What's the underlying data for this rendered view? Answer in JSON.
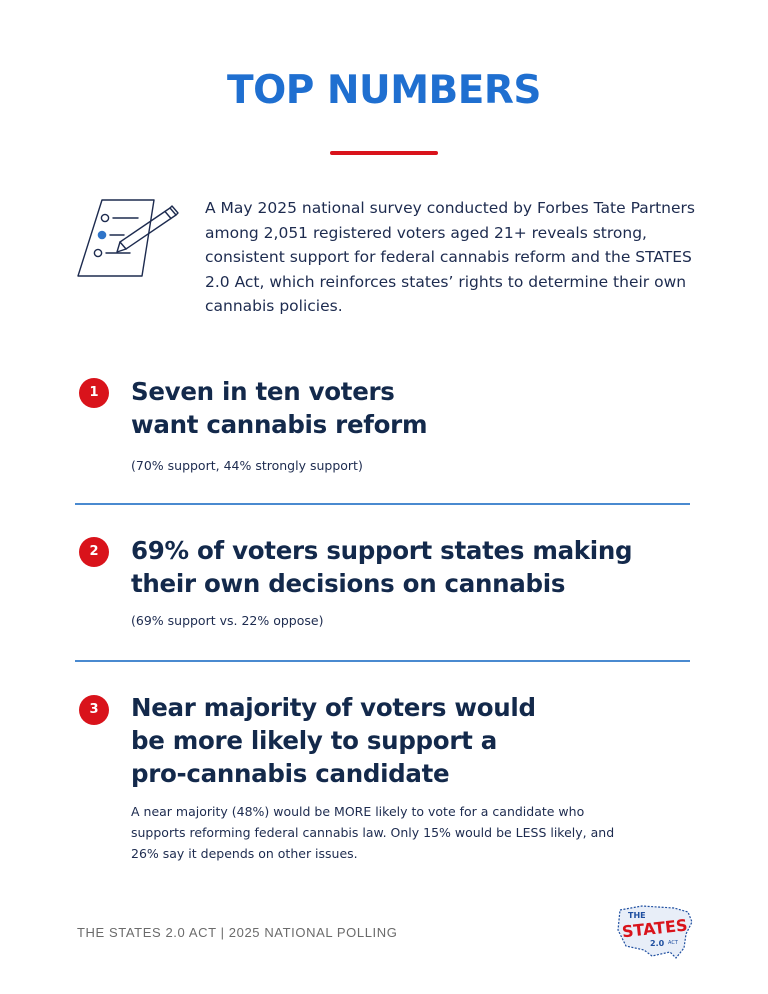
{
  "header": {
    "title": "TOP NUMBERS"
  },
  "intro": {
    "icon": "survey-checklist-icon",
    "text": "A May 2025 national survey conducted by Forbes Tate Partners among 2,051 registered voters aged 21+ reveals strong, consistent support for federal cannabis reform and the STATES 2.0 Act, which reinforces states’ rights to determine their own cannabis policies."
  },
  "findings": [
    {
      "number": "1",
      "heading_lines": [
        "Seven in ten voters",
        "want cannabis reform"
      ],
      "note": "(70% support, 44% strongly support)"
    },
    {
      "number": "2",
      "heading_lines": [
        "69% of voters support states making",
        "their own decisions on cannabis"
      ],
      "note": "(69% support vs. 22% oppose)"
    },
    {
      "number": "3",
      "heading_lines": [
        "Near majority of voters would",
        "be more likely to support a",
        "pro-cannabis candidate"
      ],
      "note_lines": [
        "A near majority (48%) would be MORE likely to vote for a candidate who",
        "supports reforming federal cannabis law. Only 15% would be LESS likely, and",
        "26% say it depends on other issues."
      ]
    }
  ],
  "footer": {
    "text": "THE STATES 2.0 ACT | 2025 NATIONAL POLLING"
  },
  "logo": {
    "line1": "THE",
    "line2": "STATES",
    "line3": "2.0",
    "line4": "ACT"
  },
  "colors": {
    "title_blue": "#1f6fd0",
    "accent_red": "#d9131b",
    "navy_text": "#13294b",
    "divider_blue": "#4a8ad0"
  }
}
